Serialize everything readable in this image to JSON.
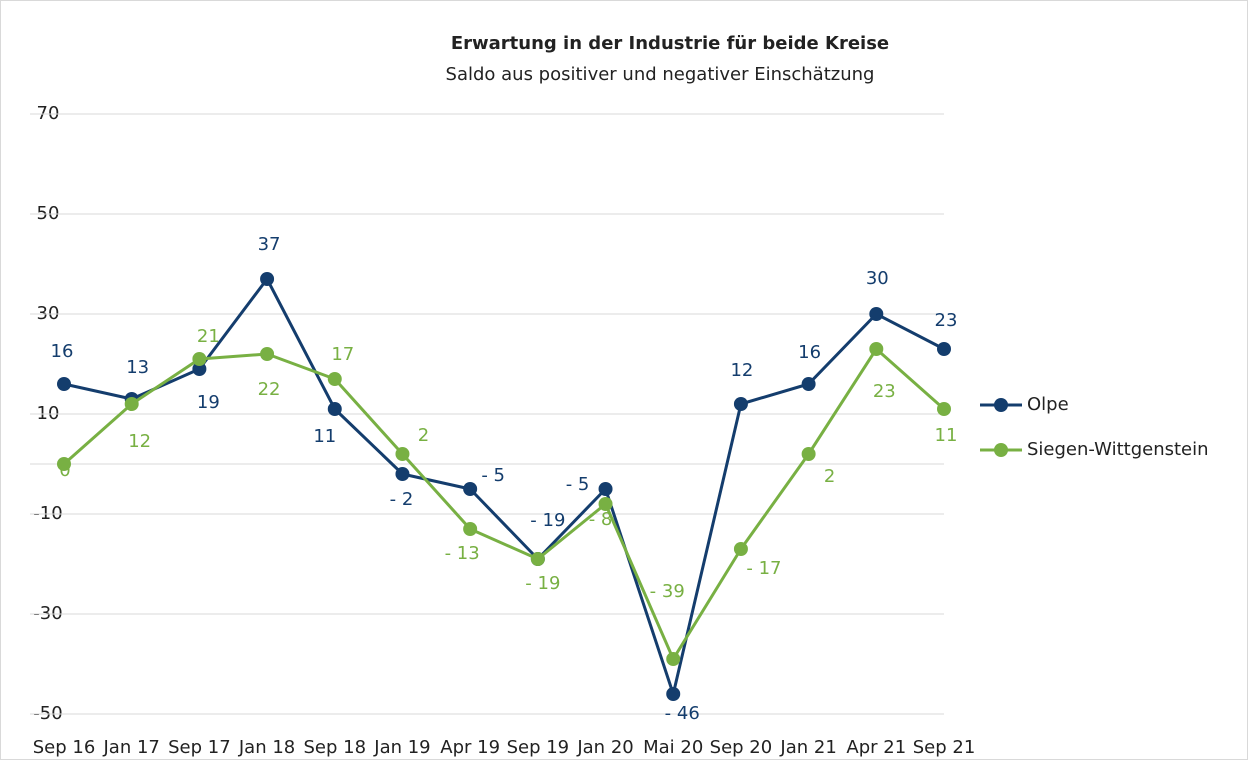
{
  "chart_data": {
    "type": "line",
    "title": "Erwartung in der Industrie für beide Kreise",
    "subtitle": "Saldo aus positiver und negativer Einschätzung",
    "categories": [
      "Sep 16",
      "Jan 17",
      "Sep 17",
      "Jan 18",
      "Sep 18",
      "Jan 19",
      "Apr 19",
      "Sep 19",
      "Jan 20",
      "Mai 20",
      "Sep 20",
      "Jan 21",
      "Apr 21",
      "Sep 21"
    ],
    "series": [
      {
        "name": "Olpe",
        "color": "#143d6d",
        "values": [
          16,
          13,
          19,
          37,
          11,
          -2,
          -5,
          -19,
          -5,
          -46,
          12,
          16,
          30,
          23
        ],
        "value_labels": [
          "16",
          "13",
          "19",
          "37",
          "11",
          "- 2",
          "- 5",
          "- 19",
          "- 5",
          "- 46",
          "12",
          "16",
          "30",
          "23"
        ]
      },
      {
        "name": "Siegen-Wittgenstein",
        "color": "#78b043",
        "values": [
          0,
          12,
          21,
          22,
          17,
          2,
          -13,
          -19,
          -8,
          -39,
          -17,
          2,
          23,
          11
        ],
        "value_labels": [
          "0",
          "12",
          "21",
          "22",
          "17",
          "2",
          "- 13",
          "- 19",
          "- 8",
          "- 39",
          "- 17",
          "2",
          "23",
          "11"
        ]
      }
    ],
    "ylim": [
      -50,
      70
    ],
    "yticks": [
      -50,
      -30,
      -10,
      10,
      30,
      50,
      70
    ],
    "grid": true,
    "legend": "right"
  }
}
